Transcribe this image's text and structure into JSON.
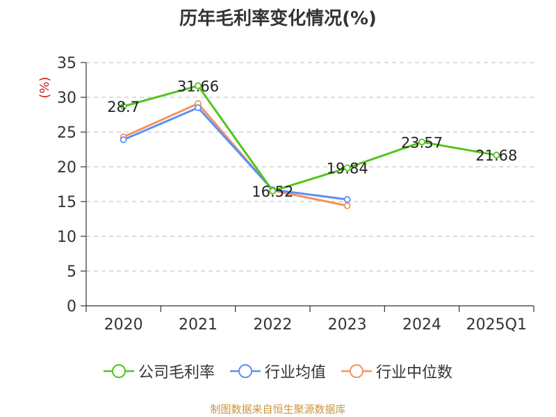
{
  "chart_data": {
    "type": "line",
    "title": "历年毛利率变化情况(%)",
    "ylabel": "(%)",
    "categories": [
      "2020",
      "2021",
      "2022",
      "2023",
      "2024",
      "2025Q1"
    ],
    "ylim": [
      0,
      35
    ],
    "yticks": [
      "0",
      "5",
      "10",
      "15",
      "20",
      "25",
      "30",
      "35"
    ],
    "grid": true,
    "legend_position": "bottom",
    "series": [
      {
        "name": "公司毛利率",
        "color": "#52c41a",
        "values": [
          28.7,
          31.66,
          16.52,
          19.84,
          23.57,
          21.68
        ],
        "labels": [
          "28.7",
          "31.66",
          "16.52",
          "19.84",
          "23.57",
          "21.68"
        ]
      },
      {
        "name": "行业均值",
        "color": "#5b8ff9",
        "values": [
          23.9,
          28.5,
          16.7,
          15.3,
          null,
          null
        ]
      },
      {
        "name": "行业中位数",
        "color": "#f4915e",
        "values": [
          24.3,
          29.1,
          16.6,
          14.4,
          null,
          null
        ]
      }
    ]
  },
  "source_note": "制图数据来自恒生聚源数据库"
}
